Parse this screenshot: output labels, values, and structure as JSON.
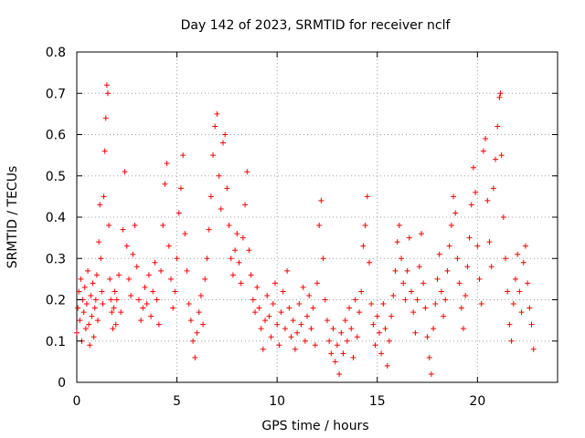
{
  "chart_data": {
    "type": "scatter",
    "title": "Day 142 of 2023, SRMTID for receiver nclf",
    "xlabel": "GPS time / hours",
    "ylabel": "SRMTID / TECUs",
    "xlim": [
      0,
      24
    ],
    "ylim": [
      0,
      0.8
    ],
    "xticks": [
      0,
      5,
      10,
      15,
      20
    ],
    "xtick_labels": [
      "0",
      "5",
      "10",
      "15",
      "20"
    ],
    "yticks": [
      0,
      0.1,
      0.2,
      0.3,
      0.4,
      0.5,
      0.6,
      0.7,
      0.8
    ],
    "ytick_labels": [
      "0",
      "0.1",
      "0.2",
      "0.3",
      "0.4",
      "0.5",
      "0.6",
      "0.7",
      "0.8"
    ],
    "grid": true,
    "marker": "+",
    "color": "#ff0000",
    "series": [
      {
        "name": "SRMTID",
        "points": [
          [
            0.0,
            0.12
          ],
          [
            0.05,
            0.18
          ],
          [
            0.1,
            0.22
          ],
          [
            0.15,
            0.15
          ],
          [
            0.2,
            0.25
          ],
          [
            0.25,
            0.1
          ],
          [
            0.3,
            0.2
          ],
          [
            0.35,
            0.17
          ],
          [
            0.4,
            0.23
          ],
          [
            0.45,
            0.13
          ],
          [
            0.5,
            0.19
          ],
          [
            0.55,
            0.27
          ],
          [
            0.6,
            0.14
          ],
          [
            0.65,
            0.09
          ],
          [
            0.7,
            0.21
          ],
          [
            0.75,
            0.16
          ],
          [
            0.8,
            0.24
          ],
          [
            0.85,
            0.11
          ],
          [
            0.9,
            0.18
          ],
          [
            0.95,
            0.2
          ],
          [
            1.0,
            0.26
          ],
          [
            1.05,
            0.15
          ],
          [
            1.1,
            0.34
          ],
          [
            1.15,
            0.43
          ],
          [
            1.2,
            0.3
          ],
          [
            1.25,
            0.22
          ],
          [
            1.3,
            0.19
          ],
          [
            1.35,
            0.45
          ],
          [
            1.4,
            0.56
          ],
          [
            1.45,
            0.64
          ],
          [
            1.5,
            0.72
          ],
          [
            1.55,
            0.7
          ],
          [
            1.6,
            0.38
          ],
          [
            1.65,
            0.25
          ],
          [
            1.7,
            0.2
          ],
          [
            1.75,
            0.17
          ],
          [
            1.8,
            0.13
          ],
          [
            1.85,
            0.18
          ],
          [
            1.9,
            0.22
          ],
          [
            1.95,
            0.14
          ],
          [
            2.0,
            0.2
          ],
          [
            2.1,
            0.26
          ],
          [
            2.2,
            0.17
          ],
          [
            2.3,
            0.37
          ],
          [
            2.4,
            0.51
          ],
          [
            2.5,
            0.33
          ],
          [
            2.6,
            0.25
          ],
          [
            2.7,
            0.21
          ],
          [
            2.8,
            0.31
          ],
          [
            2.9,
            0.38
          ],
          [
            3.0,
            0.28
          ],
          [
            3.1,
            0.2
          ],
          [
            3.2,
            0.15
          ],
          [
            3.3,
            0.18
          ],
          [
            3.4,
            0.23
          ],
          [
            3.5,
            0.19
          ],
          [
            3.6,
            0.26
          ],
          [
            3.7,
            0.16
          ],
          [
            3.8,
            0.22
          ],
          [
            3.9,
            0.29
          ],
          [
            4.0,
            0.2
          ],
          [
            4.1,
            0.14
          ],
          [
            4.2,
            0.27
          ],
          [
            4.3,
            0.38
          ],
          [
            4.4,
            0.48
          ],
          [
            4.5,
            0.53
          ],
          [
            4.6,
            0.33
          ],
          [
            4.7,
            0.25
          ],
          [
            4.8,
            0.18
          ],
          [
            4.9,
            0.22
          ],
          [
            5.0,
            0.3
          ],
          [
            5.1,
            0.41
          ],
          [
            5.2,
            0.47
          ],
          [
            5.3,
            0.55
          ],
          [
            5.4,
            0.36
          ],
          [
            5.5,
            0.27
          ],
          [
            5.6,
            0.19
          ],
          [
            5.7,
            0.15
          ],
          [
            5.8,
            0.1
          ],
          [
            5.9,
            0.06
          ],
          [
            6.0,
            0.12
          ],
          [
            6.1,
            0.17
          ],
          [
            6.2,
            0.21
          ],
          [
            6.3,
            0.14
          ],
          [
            6.4,
            0.25
          ],
          [
            6.5,
            0.3
          ],
          [
            6.6,
            0.37
          ],
          [
            6.7,
            0.45
          ],
          [
            6.8,
            0.55
          ],
          [
            6.9,
            0.62
          ],
          [
            7.0,
            0.65
          ],
          [
            7.1,
            0.5
          ],
          [
            7.2,
            0.42
          ],
          [
            7.3,
            0.58
          ],
          [
            7.4,
            0.6
          ],
          [
            7.5,
            0.47
          ],
          [
            7.6,
            0.38
          ],
          [
            7.7,
            0.3
          ],
          [
            7.8,
            0.26
          ],
          [
            7.9,
            0.32
          ],
          [
            8.0,
            0.36
          ],
          [
            8.1,
            0.29
          ],
          [
            8.2,
            0.24
          ],
          [
            8.3,
            0.35
          ],
          [
            8.4,
            0.43
          ],
          [
            8.5,
            0.51
          ],
          [
            8.6,
            0.32
          ],
          [
            8.7,
            0.26
          ],
          [
            8.8,
            0.2
          ],
          [
            8.9,
            0.17
          ],
          [
            9.0,
            0.23
          ],
          [
            9.1,
            0.18
          ],
          [
            9.2,
            0.13
          ],
          [
            9.3,
            0.08
          ],
          [
            9.4,
            0.15
          ],
          [
            9.5,
            0.21
          ],
          [
            9.6,
            0.16
          ],
          [
            9.7,
            0.11
          ],
          [
            9.8,
            0.19
          ],
          [
            9.9,
            0.24
          ],
          [
            10.0,
            0.14
          ],
          [
            10.1,
            0.09
          ],
          [
            10.2,
            0.17
          ],
          [
            10.3,
            0.22
          ],
          [
            10.4,
            0.13
          ],
          [
            10.5,
            0.27
          ],
          [
            10.6,
            0.18
          ],
          [
            10.7,
            0.11
          ],
          [
            10.8,
            0.15
          ],
          [
            10.9,
            0.08
          ],
          [
            11.0,
            0.12
          ],
          [
            11.1,
            0.19
          ],
          [
            11.2,
            0.14
          ],
          [
            11.3,
            0.23
          ],
          [
            11.4,
            0.1
          ],
          [
            11.5,
            0.16
          ],
          [
            11.6,
            0.21
          ],
          [
            11.7,
            0.13
          ],
          [
            11.8,
            0.18
          ],
          [
            11.9,
            0.09
          ],
          [
            12.0,
            0.24
          ],
          [
            12.1,
            0.38
          ],
          [
            12.2,
            0.44
          ],
          [
            12.3,
            0.3
          ],
          [
            12.4,
            0.2
          ],
          [
            12.5,
            0.15
          ],
          [
            12.6,
            0.1
          ],
          [
            12.7,
            0.07
          ],
          [
            12.8,
            0.13
          ],
          [
            12.9,
            0.05
          ],
          [
            13.0,
            0.09
          ],
          [
            13.1,
            0.02
          ],
          [
            13.2,
            0.12
          ],
          [
            13.3,
            0.07
          ],
          [
            13.4,
            0.15
          ],
          [
            13.5,
            0.1
          ],
          [
            13.6,
            0.18
          ],
          [
            13.7,
            0.13
          ],
          [
            13.8,
            0.06
          ],
          [
            13.9,
            0.2
          ],
          [
            14.0,
            0.11
          ],
          [
            14.1,
            0.17
          ],
          [
            14.2,
            0.22
          ],
          [
            14.3,
            0.33
          ],
          [
            14.4,
            0.38
          ],
          [
            14.5,
            0.45
          ],
          [
            14.6,
            0.29
          ],
          [
            14.7,
            0.19
          ],
          [
            14.8,
            0.14
          ],
          [
            14.9,
            0.09
          ],
          [
            15.0,
            0.16
          ],
          [
            15.1,
            0.12
          ],
          [
            15.2,
            0.07
          ],
          [
            15.3,
            0.19
          ],
          [
            15.4,
            0.13
          ],
          [
            15.5,
            0.04
          ],
          [
            15.6,
            0.1
          ],
          [
            15.7,
            0.16
          ],
          [
            15.8,
            0.21
          ],
          [
            15.9,
            0.27
          ],
          [
            16.0,
            0.34
          ],
          [
            16.1,
            0.38
          ],
          [
            16.2,
            0.3
          ],
          [
            16.3,
            0.24
          ],
          [
            16.4,
            0.2
          ],
          [
            16.5,
            0.27
          ],
          [
            16.6,
            0.35
          ],
          [
            16.7,
            0.22
          ],
          [
            16.8,
            0.17
          ],
          [
            16.9,
            0.12
          ],
          [
            17.0,
            0.2
          ],
          [
            17.1,
            0.28
          ],
          [
            17.2,
            0.36
          ],
          [
            17.3,
            0.24
          ],
          [
            17.4,
            0.18
          ],
          [
            17.5,
            0.11
          ],
          [
            17.6,
            0.06
          ],
          [
            17.7,
            0.02
          ],
          [
            17.8,
            0.13
          ],
          [
            17.9,
            0.19
          ],
          [
            18.0,
            0.25
          ],
          [
            18.1,
            0.31
          ],
          [
            18.2,
            0.22
          ],
          [
            18.3,
            0.16
          ],
          [
            18.4,
            0.2
          ],
          [
            18.5,
            0.27
          ],
          [
            18.6,
            0.33
          ],
          [
            18.7,
            0.38
          ],
          [
            18.8,
            0.45
          ],
          [
            18.9,
            0.41
          ],
          [
            19.0,
            0.3
          ],
          [
            19.1,
            0.24
          ],
          [
            19.2,
            0.18
          ],
          [
            19.3,
            0.13
          ],
          [
            19.4,
            0.21
          ],
          [
            19.5,
            0.28
          ],
          [
            19.6,
            0.35
          ],
          [
            19.7,
            0.43
          ],
          [
            19.8,
            0.52
          ],
          [
            19.9,
            0.46
          ],
          [
            20.0,
            0.33
          ],
          [
            20.1,
            0.25
          ],
          [
            20.2,
            0.19
          ],
          [
            20.3,
            0.56
          ],
          [
            20.4,
            0.59
          ],
          [
            20.5,
            0.44
          ],
          [
            20.6,
            0.34
          ],
          [
            20.7,
            0.28
          ],
          [
            20.8,
            0.47
          ],
          [
            20.9,
            0.54
          ],
          [
            21.0,
            0.62
          ],
          [
            21.1,
            0.69
          ],
          [
            21.15,
            0.7
          ],
          [
            21.2,
            0.55
          ],
          [
            21.3,
            0.4
          ],
          [
            21.4,
            0.3
          ],
          [
            21.5,
            0.22
          ],
          [
            21.6,
            0.14
          ],
          [
            21.7,
            0.1
          ],
          [
            21.8,
            0.19
          ],
          [
            21.9,
            0.25
          ],
          [
            22.0,
            0.31
          ],
          [
            22.1,
            0.22
          ],
          [
            22.2,
            0.17
          ],
          [
            22.3,
            0.29
          ],
          [
            22.4,
            0.33
          ],
          [
            22.5,
            0.24
          ],
          [
            22.6,
            0.18
          ],
          [
            22.7,
            0.14
          ],
          [
            22.8,
            0.08
          ]
        ]
      }
    ]
  }
}
